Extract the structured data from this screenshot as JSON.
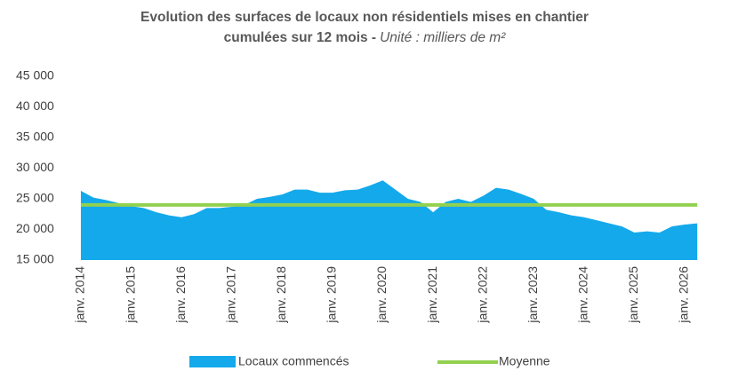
{
  "chart_data": {
    "type": "area",
    "title": [
      "Evolution des surfaces de locaux non résidentiels mises en chantier",
      "cumulées sur 12 mois -"
    ],
    "subtitle": "Unité : milliers de m²",
    "x": [
      2014,
      2014.25,
      2014.5,
      2014.75,
      2015,
      2015.25,
      2015.5,
      2015.75,
      2016,
      2016.25,
      2016.5,
      2016.75,
      2017,
      2017.25,
      2017.5,
      2017.75,
      2018,
      2018.25,
      2018.5,
      2018.75,
      2019,
      2019.25,
      2019.5,
      2019.75,
      2020,
      2020.25,
      2020.5,
      2020.75,
      2021,
      2021.25,
      2021.5,
      2021.75,
      2022,
      2022.25,
      2022.5,
      2022.75,
      2023,
      2023.25,
      2023.5,
      2023.75,
      2024,
      2024.25,
      2024.5,
      2024.75,
      2025,
      2025.25,
      2025.5,
      2025.75,
      2026,
      2026.25
    ],
    "series": [
      {
        "name": "Locaux commencés",
        "color": "#13a9ea",
        "values": [
          26300,
          25200,
          24800,
          24300,
          23800,
          23500,
          22800,
          22300,
          22000,
          22500,
          23500,
          23500,
          23700,
          24000,
          25000,
          25300,
          25700,
          26500,
          26500,
          26000,
          26000,
          26400,
          26500,
          27200,
          28000,
          26500,
          25000,
          24500,
          22800,
          24500,
          25000,
          24500,
          25500,
          26800,
          26500,
          25800,
          25000,
          23200,
          22800,
          22300,
          22000,
          21500,
          21000,
          20500,
          19500,
          19700,
          19500,
          20500,
          20800,
          21000
        ]
      }
    ],
    "mean": {
      "name": "Moyenne",
      "color": "#92d050",
      "value": 24000
    },
    "xlim": [
      2013.9,
      2026.6
    ],
    "xticks": [
      {
        "value": 2014,
        "label": "janv. 2014"
      },
      {
        "value": 2015,
        "label": "janv. 2015"
      },
      {
        "value": 2016,
        "label": "janv. 2016"
      },
      {
        "value": 2017,
        "label": "janv. 2017"
      },
      {
        "value": 2018,
        "label": "janv. 2018"
      },
      {
        "value": 2019,
        "label": "janv. 2019"
      },
      {
        "value": 2020,
        "label": "janv. 2020"
      },
      {
        "value": 2021,
        "label": "janv. 2021"
      },
      {
        "value": 2022,
        "label": "janv. 2022"
      },
      {
        "value": 2023,
        "label": "janv. 2023"
      },
      {
        "value": 2024,
        "label": "janv. 2024"
      },
      {
        "value": 2025,
        "label": "janv. 2025"
      },
      {
        "value": 2026,
        "label": "janv. 2026"
      }
    ],
    "ylim": [
      15000,
      45000
    ],
    "yticks": [
      {
        "value": 15000,
        "label": "15 000"
      },
      {
        "value": 20000,
        "label": "20 000"
      },
      {
        "value": 25000,
        "label": "25 000"
      },
      {
        "value": 30000,
        "label": "30 000"
      },
      {
        "value": 35000,
        "label": "35 000"
      },
      {
        "value": 40000,
        "label": "40 000"
      },
      {
        "value": 45000,
        "label": "45 000"
      }
    ],
    "grid": false
  }
}
